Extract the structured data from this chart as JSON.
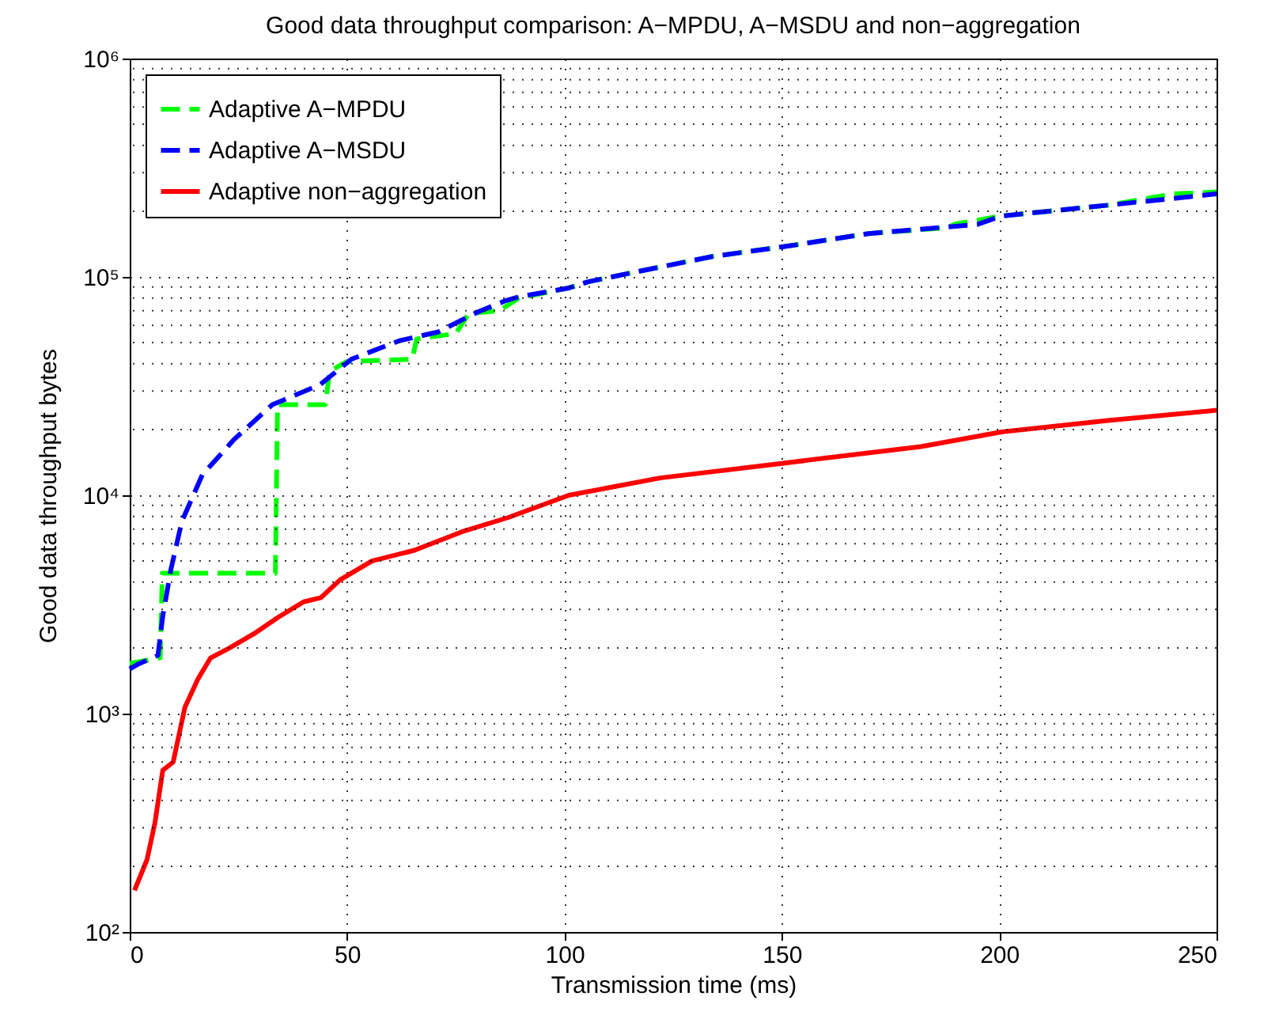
{
  "chart_data": {
    "type": "line",
    "title": "Good data throughput comparison: A−MPDU, A−MSDU and non−aggregation",
    "xlabel": "Transmission time (ms)",
    "ylabel": "Good data throughput bytes",
    "log": "y",
    "xlim": [
      0,
      250
    ],
    "xticks": [
      0,
      50,
      100,
      150,
      200,
      250
    ],
    "ylim": [
      100,
      1000000
    ],
    "yticks": [
      {
        "value": 100,
        "label": "10²"
      },
      {
        "value": 1000,
        "label": "10³"
      },
      {
        "value": 10000,
        "label": "10⁴"
      },
      {
        "value": 100000,
        "label": "10⁵"
      },
      {
        "value": 1000000,
        "label": "10⁶"
      }
    ],
    "grid": true,
    "legend": "top left",
    "series": [
      {
        "name": "Adaptive A−MPDU",
        "color": "#00ff00",
        "line_style": "dashed",
        "x": [
          0,
          7,
          7.5,
          33.5,
          34,
          45,
          46,
          50,
          65,
          66,
          75,
          78,
          85,
          89.5,
          101,
          105.5,
          116,
          134,
          152,
          170,
          188,
          190,
          200.5,
          225,
          240,
          250
        ],
        "values": [
          1700,
          1800,
          4400,
          4400,
          26000,
          26000,
          37000,
          41000,
          42000,
          52000,
          55000,
          68000,
          70000,
          80000,
          89000,
          95000,
          105000,
          124000,
          139000,
          158000,
          168000,
          175000,
          190000,
          213000,
          240000,
          245000
        ]
      },
      {
        "name": "Adaptive A−MSDU",
        "color": "#0000ff",
        "line_style": "dashed",
        "x": [
          0,
          1.8,
          6.5,
          7.6,
          9.5,
          12,
          16.7,
          24,
          32.8,
          43.7,
          51,
          62,
          71,
          80,
          86.6,
          89.5,
          101,
          105.5,
          116,
          134,
          152,
          170,
          195,
          200.5,
          225,
          250
        ],
        "values": [
          1600,
          1680,
          1850,
          2800,
          4600,
          7600,
          12400,
          18000,
          26000,
          32000,
          42000,
          51000,
          56000,
          69000,
          78000,
          81000,
          89000,
          95000,
          105000,
          124000,
          139000,
          158000,
          174000,
          190000,
          213000,
          240000
        ]
      },
      {
        "name": "Adaptive non−aggregation",
        "color": "#ff0000",
        "line_style": "solid",
        "x": [
          1.1,
          4,
          5.8,
          7.6,
          10,
          12.7,
          15.6,
          18.6,
          23,
          29,
          34,
          40,
          44,
          48.4,
          55.7,
          65.5,
          76.4,
          87,
          101,
          122,
          150,
          182,
          200.5,
          225,
          250
        ],
        "values": [
          155,
          215,
          316,
          550,
          600,
          1070,
          1430,
          1800,
          2000,
          2350,
          2750,
          3250,
          3400,
          4100,
          5000,
          5600,
          6800,
          7900,
          10000,
          12000,
          14000,
          16700,
          19500,
          22000,
          24500
        ]
      }
    ]
  }
}
